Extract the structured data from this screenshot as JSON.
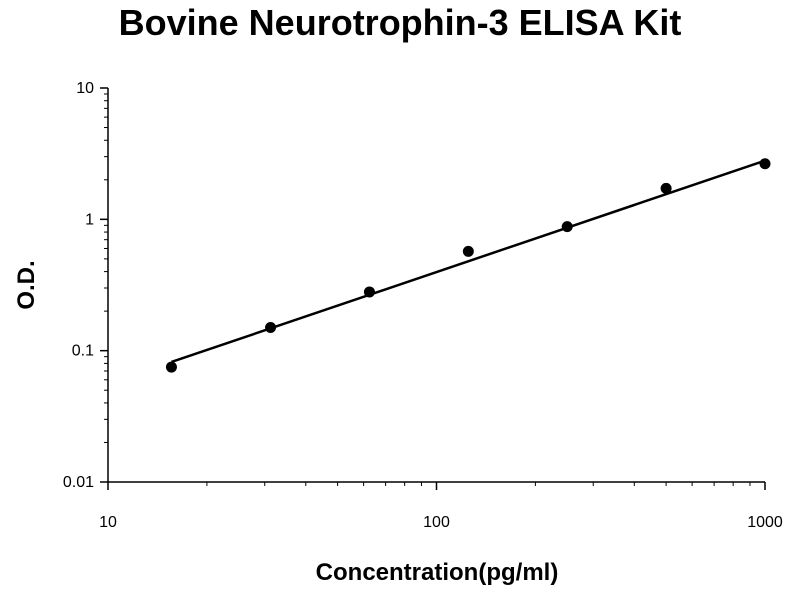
{
  "chart_data": {
    "type": "scatter",
    "title": "Bovine Neurotrophin-3 ELISA Kit",
    "xlabel": "Concentration(pg/ml)",
    "ylabel": "O.D.",
    "xscale": "log",
    "yscale": "log",
    "xlim": [
      10,
      1000
    ],
    "ylim": [
      0.01,
      10
    ],
    "xticks": [
      "10",
      "100",
      "1000"
    ],
    "yticks": [
      "10",
      "1",
      "0.1",
      "0.01"
    ],
    "grid": false,
    "legend": "none",
    "series": [
      {
        "x": [
          15.6,
          31.25,
          62.5,
          125,
          250,
          500,
          1000
        ],
        "y": [
          0.075,
          0.15,
          0.28,
          0.57,
          0.88,
          1.72,
          2.65
        ]
      }
    ],
    "fit_line": {
      "x": [
        15.6,
        1000
      ],
      "y": [
        0.082,
        2.8
      ]
    },
    "colors": {
      "points": "#000000",
      "line": "#000000",
      "axes": "#000000"
    }
  }
}
